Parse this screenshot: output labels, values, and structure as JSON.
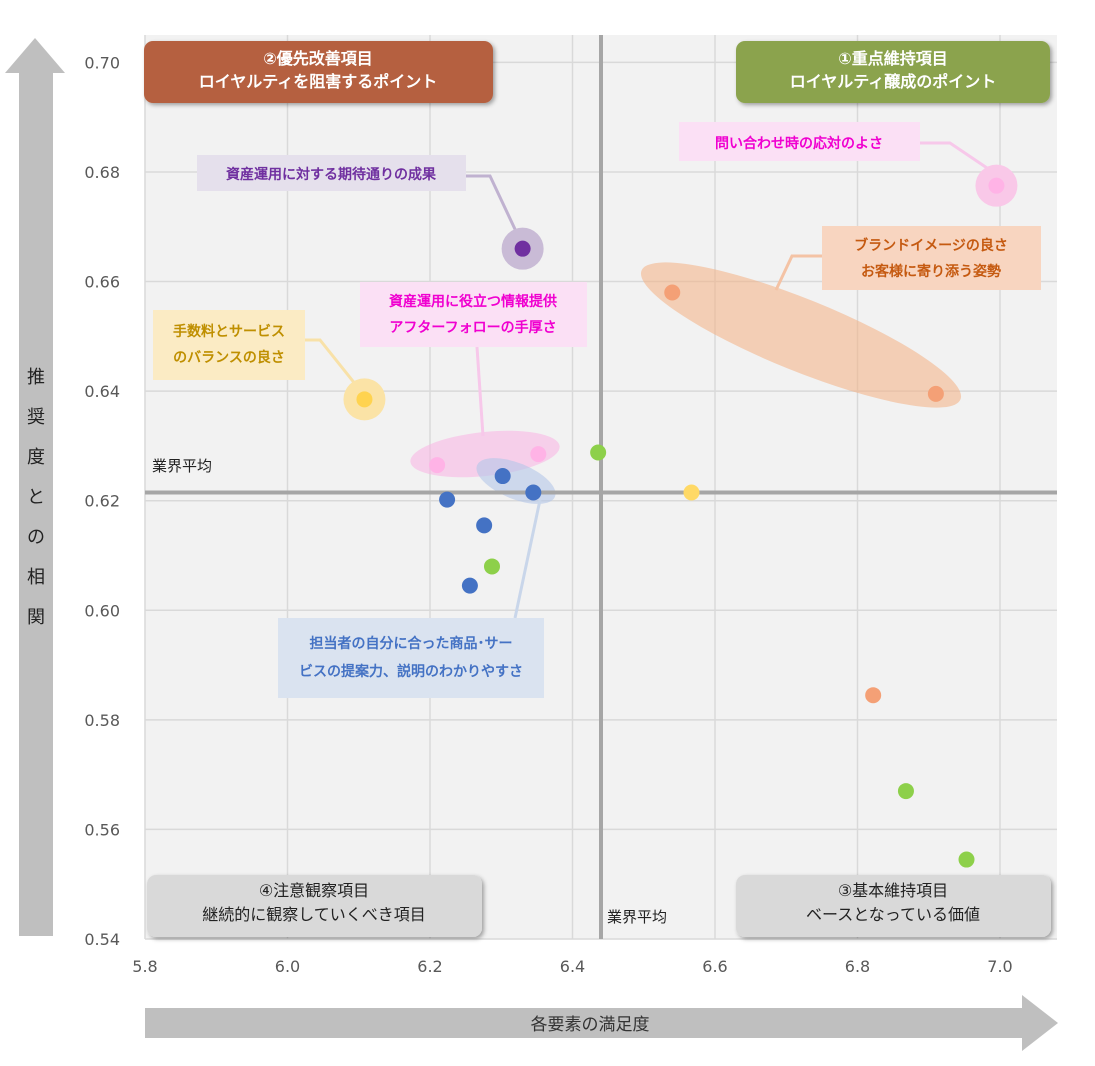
{
  "chart_data": {
    "type": "scatter",
    "x_ticks": [
      "5.8",
      "6.0",
      "6.2",
      "6.4",
      "6.6",
      "6.8",
      "7.0"
    ],
    "y_ticks": [
      "0.54",
      "0.56",
      "0.58",
      "0.60",
      "0.62",
      "0.64",
      "0.66",
      "0.68",
      "0.70"
    ],
    "xlim": [
      5.8,
      7.08
    ],
    "ylim": [
      0.54,
      0.705
    ],
    "grid": true,
    "xlabel": "各要素の満足度",
    "ylabel": "推奨度との相関",
    "reference_lines": {
      "x": {
        "value": 6.44,
        "label": "業界平均"
      },
      "y": {
        "value": 0.6215,
        "label": "業界平均"
      }
    },
    "quadrants": [
      {
        "line1": "①重点維持項目",
        "line2": "ロイヤルティ醸成のポイント",
        "color": "#8BA34D"
      },
      {
        "line1": "②優先改善項目",
        "line2": "ロイヤルティを阻害するポイント",
        "color": "#B5613F"
      },
      {
        "line1": "③基本維持項目",
        "line2": "ベースとなっている価値",
        "color": "#D9D9D9"
      },
      {
        "line1": "④注意観察項目",
        "line2": "継続的に観察していくべき項目",
        "color": "#D9D9D9"
      }
    ],
    "callouts": [
      {
        "lines": [
          "問い合わせ時の応対のよさ"
        ],
        "color": "#F000D0",
        "bg": "#FBE0F5"
      },
      {
        "lines": [
          "資産運用に対する期待通りの成果"
        ],
        "color": "#7030A0",
        "bg": "#E5E0EC"
      },
      {
        "lines": [
          "ブランドイメージの良さ",
          "お客様に寄り添う姿勢"
        ],
        "color": "#C55A11",
        "bg": "#F8D5C0"
      },
      {
        "lines": [
          "資産運用に役立つ情報提供",
          "アフターフォローの手厚さ"
        ],
        "color": "#F000D0",
        "bg": "#FBE0F5"
      },
      {
        "lines": [
          "手数料とサービス",
          "のバランスの良さ"
        ],
        "color": "#BF8F00",
        "bg": "#FBEBC4"
      },
      {
        "lines": [
          "担当者の自分に合った商品･サー",
          "ビスの提案力、説明のわかりやすさ"
        ],
        "color": "#4472C4",
        "bg": "#DAE3F0"
      }
    ],
    "points": [
      {
        "x": 6.995,
        "y": 0.6775,
        "color": "#FFB3E6",
        "halo": "#F9C8E8"
      },
      {
        "x": 6.33,
        "y": 0.666,
        "color": "#7030A0",
        "halo": "#C9BBD6"
      },
      {
        "x": 6.54,
        "y": 0.658,
        "color": "#F4A076"
      },
      {
        "x": 6.91,
        "y": 0.6395,
        "color": "#F4A076"
      },
      {
        "x": 6.108,
        "y": 0.6385,
        "color": "#FFD34F",
        "halo": "#FBE3A6"
      },
      {
        "x": 6.21,
        "y": 0.6265,
        "color": "#FFB3E6"
      },
      {
        "x": 6.352,
        "y": 0.6285,
        "color": "#FFB3E6"
      },
      {
        "x": 6.436,
        "y": 0.6288,
        "color": "#8DD04A"
      },
      {
        "x": 6.302,
        "y": 0.6245,
        "color": "#4472C4"
      },
      {
        "x": 6.345,
        "y": 0.6215,
        "color": "#4472C4"
      },
      {
        "x": 6.224,
        "y": 0.6202,
        "color": "#4472C4"
      },
      {
        "x": 6.567,
        "y": 0.6215,
        "color": "#FFD966"
      },
      {
        "x": 6.276,
        "y": 0.6155,
        "color": "#4472C4"
      },
      {
        "x": 6.287,
        "y": 0.608,
        "color": "#8DD04A"
      },
      {
        "x": 6.256,
        "y": 0.6045,
        "color": "#4472C4"
      },
      {
        "x": 6.822,
        "y": 0.5845,
        "color": "#F4A076"
      },
      {
        "x": 6.868,
        "y": 0.567,
        "color": "#8DD04A"
      },
      {
        "x": 6.953,
        "y": 0.5545,
        "color": "#8DD04A"
      }
    ]
  }
}
